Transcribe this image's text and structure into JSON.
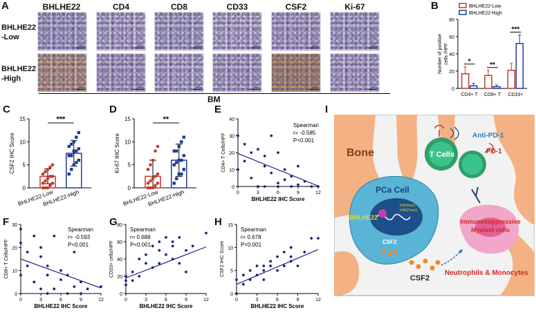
{
  "panel_labels": [
    "A",
    "B",
    "C",
    "D",
    "E",
    "F",
    "G",
    "H",
    "I"
  ],
  "panel_a": {
    "columns": [
      "BHLHE22",
      "CD4",
      "CD8",
      "CD33",
      "CSF2",
      "Ki-67"
    ],
    "rows": [
      "BHLHE22\n-Low",
      "BHLHE22\n-High"
    ],
    "scale_bar": "50um",
    "footer": "BM"
  },
  "panel_i": {
    "bone": "Bone",
    "pca_cell": "PCa Cell",
    "bhlhe22": "BHLHE22",
    "csf2_inner": "CSF2",
    "csf2_outer": "CSF2",
    "t_cells": "T Cells",
    "anti_pd1": "Anti-PD-1",
    "pd1": "PD-1",
    "myeloid": "Immunosuppressive\nMyeloid cells",
    "neutro": "Neutrophils & Monocytes",
    "mark_a": "H3K9me3",
    "mark_b": "H3K27me3"
  },
  "chart_data": [
    {
      "panel": "B",
      "type": "bar",
      "categories": [
        "CD4+ T",
        "CD8+ T",
        "CD33+"
      ],
      "series": [
        {
          "name": "BHLHE22-Low",
          "values": [
            17,
            15,
            21
          ],
          "err": [
            8,
            6,
            8
          ],
          "color": "#c0392b"
        },
        {
          "name": "BHLHE22-High",
          "values": [
            3,
            2,
            52
          ],
          "err": [
            3,
            2,
            10
          ],
          "color": "#1f3a93"
        }
      ],
      "significance": [
        "*",
        "**",
        "***"
      ],
      "ylabel": "Number of positive\ncells /HPF",
      "ylim": [
        0,
        80
      ],
      "yticks": [
        0,
        20,
        40,
        60,
        80
      ]
    },
    {
      "panel": "C",
      "type": "bar",
      "categories": [
        "BHLHE22-Low",
        "BHLHE22-High"
      ],
      "values": [
        2.5,
        7.5
      ],
      "err": [
        1.6,
        2.8
      ],
      "points": [
        [
          0,
          0,
          0,
          0.5,
          1,
          1,
          1.5,
          2,
          2.5,
          2.5,
          3,
          3.5,
          4,
          4.5,
          5
        ],
        [
          3,
          4,
          5,
          5.5,
          6,
          7,
          7,
          8,
          8,
          8.5,
          9,
          9.5,
          10,
          11,
          12
        ]
      ],
      "significance": "***",
      "ylabel": "CSF2 IHC Score",
      "ylim": [
        0,
        15
      ],
      "yticks": [
        0,
        5,
        10,
        15
      ]
    },
    {
      "panel": "D",
      "type": "bar",
      "categories": [
        "BHLHE22-Low",
        "BHLHE22-High"
      ],
      "values": [
        2.5,
        6.0
      ],
      "err": [
        3.5,
        3.5
      ],
      "points": [
        [
          0,
          0,
          0,
          0.5,
          1,
          1,
          1.5,
          2,
          2.5,
          3,
          4,
          5,
          6,
          8,
          9
        ],
        [
          1,
          2,
          3,
          3,
          4,
          5,
          5.5,
          6,
          6,
          7,
          8,
          8,
          9,
          10,
          11
        ]
      ],
      "significance": "**",
      "ylabel": "Ki-67 IHC Score",
      "ylim": [
        0,
        15
      ],
      "yticks": [
        0,
        5,
        10,
        15
      ]
    },
    {
      "panel": "E",
      "type": "scatter",
      "x": [
        0,
        0,
        1,
        1,
        2,
        2,
        3,
        3,
        4,
        4,
        4,
        5,
        5,
        6,
        6,
        6,
        7,
        7,
        8,
        8,
        9,
        9,
        10,
        11,
        12
      ],
      "y": [
        30,
        10,
        25,
        15,
        20,
        5,
        22,
        0,
        18,
        12,
        0,
        30,
        8,
        20,
        2,
        0,
        10,
        4,
        6,
        0,
        12,
        1,
        3,
        0,
        0
      ],
      "fit": {
        "slope": -1.6,
        "intercept": 19.5
      },
      "annotation": [
        "Spearman",
        "r= -0.585",
        "P<0.001"
      ],
      "xlabel": "BHLHE22 IHC Score",
      "ylabel": "CD4+ T Cells/HPF",
      "xlim": [
        0,
        12
      ],
      "ylim": [
        0,
        40
      ],
      "xticks": [
        0,
        3,
        6,
        9,
        12
      ],
      "yticks": [
        0,
        10,
        20,
        30,
        40
      ]
    },
    {
      "panel": "F",
      "type": "scatter",
      "x": [
        0,
        0,
        0,
        1,
        1,
        2,
        2,
        3,
        3,
        3,
        4,
        4,
        4,
        5,
        5,
        6,
        6,
        7,
        7,
        8,
        8,
        9,
        9,
        10,
        12
      ],
      "y": [
        28,
        22,
        8,
        18,
        12,
        25,
        5,
        20,
        16,
        2,
        12,
        8,
        0,
        25,
        2,
        10,
        6,
        8,
        0,
        18,
        3,
        5,
        0,
        2,
        3
      ],
      "fit": {
        "slope": -1.05,
        "intercept": 15
      },
      "annotation": [
        "Spearman",
        "r= -0.593",
        "P<0.001"
      ],
      "xlabel": "BHLHE22 IHC Score",
      "ylabel": "CD8+ T Cells/HPF",
      "xlim": [
        0,
        12
      ],
      "ylim": [
        0,
        30
      ],
      "xticks": [
        0,
        3,
        6,
        9,
        12
      ],
      "yticks": [
        0,
        10,
        20,
        30
      ]
    },
    {
      "panel": "G",
      "type": "scatter",
      "x": [
        0,
        0,
        0,
        1,
        1,
        2,
        2,
        3,
        3,
        4,
        4,
        5,
        5,
        5,
        6,
        6,
        7,
        7,
        7,
        8,
        8,
        9,
        9,
        10,
        12
      ],
      "y": [
        10,
        20,
        15,
        25,
        15,
        40,
        20,
        35,
        45,
        30,
        55,
        50,
        35,
        60,
        45,
        65,
        60,
        55,
        40,
        65,
        35,
        50,
        25,
        55,
        70
      ],
      "fit": {
        "slope": 3.0,
        "intercept": 18
      },
      "annotation": [
        "Spearman",
        "r= 0.688",
        "P<0.001"
      ],
      "xlabel": "BHLHE22 IHC Score",
      "ylabel": "CD33+ cells/HPF",
      "xlim": [
        0,
        12
      ],
      "ylim": [
        0,
        80
      ],
      "xticks": [
        0,
        3,
        6,
        9,
        12
      ],
      "yticks": [
        0,
        20,
        40,
        60,
        80
      ]
    },
    {
      "panel": "H",
      "type": "scatter",
      "x": [
        0,
        0,
        1,
        1,
        2,
        2,
        3,
        3,
        4,
        4,
        4,
        5,
        5,
        6,
        6,
        7,
        7,
        8,
        8,
        8,
        9,
        10,
        11,
        12
      ],
      "y": [
        0,
        3,
        2,
        4,
        3,
        5,
        4,
        6,
        6,
        5,
        3,
        6,
        7,
        5,
        8,
        6,
        9,
        7,
        10,
        8,
        6,
        9,
        12,
        12
      ],
      "fit": {
        "slope": 0.63,
        "intercept": 2
      },
      "annotation": [
        "Spearman",
        "r= 0.678",
        "P<0.001"
      ],
      "xlabel": "BHLHE22 IHC Score",
      "ylabel": "CSF2 IHC Score",
      "xlim": [
        0,
        12
      ],
      "ylim": [
        0,
        15
      ],
      "xticks": [
        0,
        3,
        6,
        9,
        12
      ],
      "yticks": [
        0,
        5,
        10,
        15
      ]
    }
  ]
}
